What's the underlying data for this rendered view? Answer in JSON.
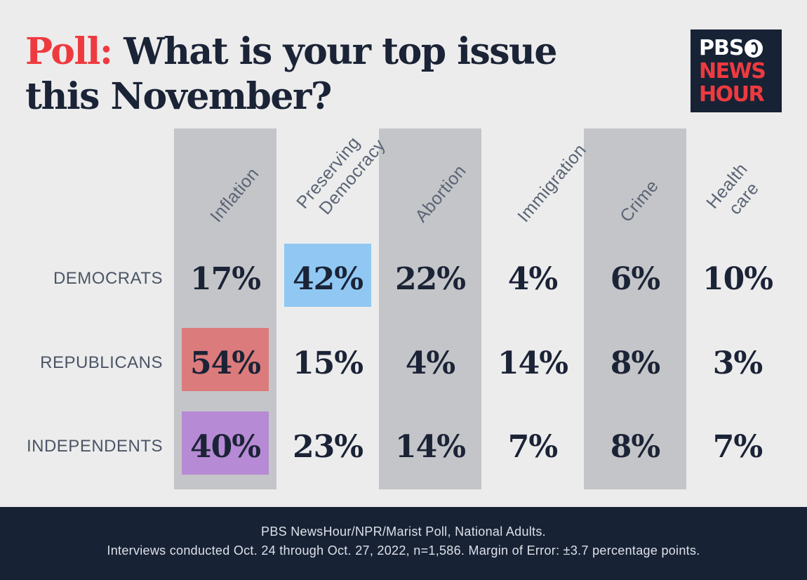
{
  "title": {
    "accent": "Poll:",
    "text": "What is your top issue this November?"
  },
  "logo": {
    "line1": "PBS",
    "line2": "NEWS",
    "line3": "HOUR"
  },
  "chart_data": {
    "type": "table",
    "columns": [
      [
        "Inflation"
      ],
      [
        "Preserving",
        "Democracy"
      ],
      [
        "Abortion"
      ],
      [
        "Immigration"
      ],
      [
        "Crime"
      ],
      [
        "Health",
        "care"
      ]
    ],
    "rows": [
      {
        "label": "DEMOCRATS",
        "values": [
          17,
          42,
          22,
          4,
          6,
          10
        ],
        "highlight": 1,
        "highlight_color": "#90c8f3"
      },
      {
        "label": "REPUBLICANS",
        "values": [
          54,
          15,
          4,
          14,
          8,
          3
        ],
        "highlight": 0,
        "highlight_color": "#dc7b7c"
      },
      {
        "label": "INDEPENDENTS",
        "values": [
          40,
          23,
          14,
          7,
          8,
          7
        ],
        "highlight": 0,
        "highlight_color": "#b68ad4"
      }
    ],
    "value_suffix": "%",
    "shaded_column_color": "#c4c5c8"
  },
  "footer": {
    "line1": "PBS NewsHour/NPR/Marist Poll, National Adults.",
    "line2": "Interviews conducted Oct. 24 through Oct. 27, 2022, n=1,586. Margin of Error: ±3.7 percentage points."
  }
}
